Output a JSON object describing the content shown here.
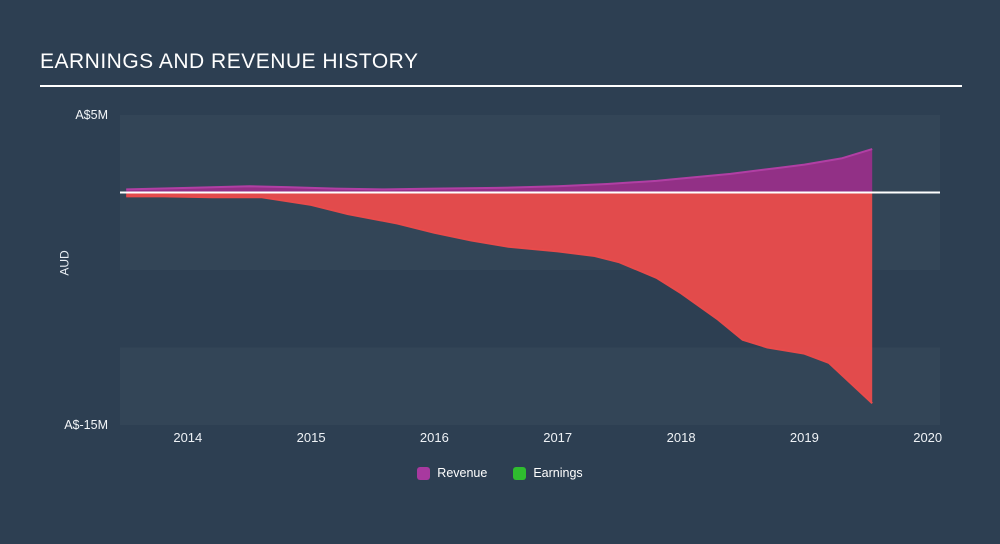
{
  "page": {
    "background": "#2d3f52"
  },
  "header": {
    "title": "EARNINGS AND REVENUE HISTORY"
  },
  "chart_data": {
    "type": "area",
    "title": "EARNINGS AND REVENUE HISTORY",
    "ylabel": "AUD",
    "currency": "AUD",
    "grid": "horizontal-bands",
    "legend_position": "bottom-center",
    "y_axis": {
      "top_label": "A$5M",
      "bottom_label": "A$-15M",
      "ylim": [
        -15,
        5
      ],
      "unit": "A$ millions"
    },
    "x_axis": {
      "ticks": [
        "2014",
        "2015",
        "2016",
        "2017",
        "2018",
        "2019",
        "2020"
      ],
      "range": [
        2013.45,
        2020.1
      ]
    },
    "zero_line_color": "#ffffff",
    "legend": [
      {
        "label": "Revenue",
        "color": "#a8399f"
      },
      {
        "label": "Earnings",
        "color": "#2fbd2f"
      }
    ],
    "series": [
      {
        "name": "Revenue",
        "color": "#962f87",
        "edge_color": "#b13fa4",
        "x": [
          2013.5,
          2014.0,
          2014.5,
          2014.8,
          2015.2,
          2015.6,
          2016.0,
          2016.5,
          2017.0,
          2017.4,
          2017.8,
          2018.0,
          2018.4,
          2018.8,
          2019.0,
          2019.3,
          2019.55
        ],
        "values": [
          0.2,
          0.3,
          0.4,
          0.35,
          0.25,
          0.2,
          0.25,
          0.3,
          0.4,
          0.55,
          0.75,
          0.9,
          1.2,
          1.6,
          1.8,
          2.2,
          2.8
        ]
      },
      {
        "name": "Earnings",
        "color": "#e84b4b",
        "edge_color": "#e84b4b",
        "x": [
          2013.5,
          2013.8,
          2014.2,
          2014.6,
          2015.0,
          2015.3,
          2015.7,
          2016.0,
          2016.3,
          2016.6,
          2017.0,
          2017.3,
          2017.5,
          2017.8,
          2018.0,
          2018.3,
          2018.5,
          2018.7,
          2019.0,
          2019.2,
          2019.55
        ],
        "values": [
          -0.25,
          -0.25,
          -0.3,
          -0.3,
          -0.8,
          -1.4,
          -2.0,
          -2.6,
          -3.1,
          -3.5,
          -3.8,
          -4.1,
          -4.5,
          -5.5,
          -6.5,
          -8.2,
          -9.5,
          -10.0,
          -10.4,
          -11.0,
          -13.6
        ]
      }
    ]
  }
}
